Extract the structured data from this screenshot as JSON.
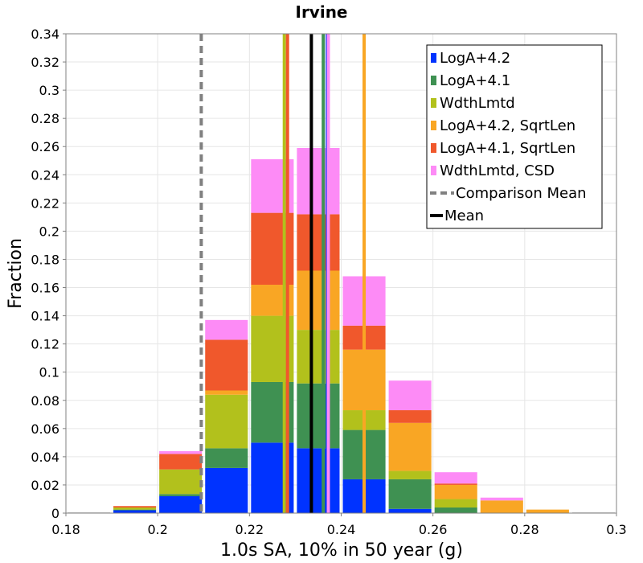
{
  "chart_data": {
    "type": "bar",
    "title": "Irvine",
    "xlabel": "1.0s SA, 10% in 50 year (g)",
    "ylabel": "Fraction",
    "xlim": [
      0.18,
      0.3
    ],
    "ylim": [
      0,
      0.34
    ],
    "x_ticks": [
      "0.18",
      "0.2",
      "0.22",
      "0.24",
      "0.26",
      "0.28",
      "0.3"
    ],
    "y_ticks": [
      "0",
      "0.02",
      "0.04",
      "0.06",
      "0.08",
      "0.1",
      "0.12",
      "0.14",
      "0.16",
      "0.18",
      "0.2",
      "0.22",
      "0.24",
      "0.26",
      "0.28",
      "0.3",
      "0.32",
      "0.34"
    ],
    "grid": true,
    "stacked": true,
    "bin_width": 0.01,
    "bin_centers": [
      0.185,
      0.195,
      0.205,
      0.215,
      0.225,
      0.235,
      0.245,
      0.255,
      0.265,
      0.275,
      0.285,
      0.295
    ],
    "series": [
      {
        "name": "LogA+4.2",
        "color": "#0033ff",
        "values": [
          0.0,
          0.002,
          0.012,
          0.032,
          0.05,
          0.046,
          0.024,
          0.003,
          0.0,
          0.0,
          0.0,
          0.0
        ]
      },
      {
        "name": "LogA+4.1",
        "color": "#3f9152",
        "values": [
          0.0,
          0.0005,
          0.0015,
          0.014,
          0.043,
          0.046,
          0.035,
          0.021,
          0.004,
          0.0,
          0.0,
          0.0
        ]
      },
      {
        "name": "WdthLmtd",
        "color": "#b2c11c",
        "values": [
          0.0,
          0.0015,
          0.0175,
          0.038,
          0.047,
          0.038,
          0.014,
          0.006,
          0.006,
          0.0,
          0.0,
          0.0
        ]
      },
      {
        "name": "LogA+4.2, SqrtLen",
        "color": "#f9a624",
        "values": [
          0.0,
          0.0,
          0.0,
          0.003,
          0.022,
          0.042,
          0.043,
          0.034,
          0.01,
          0.009,
          0.0025,
          0.0
        ]
      },
      {
        "name": "LogA+4.1, SqrtLen",
        "color": "#f0582c",
        "values": [
          0.0,
          0.001,
          0.011,
          0.036,
          0.051,
          0.04,
          0.017,
          0.009,
          0.001,
          0.0,
          0.0,
          0.0
        ]
      },
      {
        "name": "WdthLmtd, CSD",
        "color": "#fd8bf6",
        "values": [
          0.0,
          0.0,
          0.002,
          0.014,
          0.038,
          0.047,
          0.035,
          0.021,
          0.008,
          0.002,
          0.0,
          0.0
        ]
      }
    ],
    "series_means": [
      {
        "series": "LogA+4.2",
        "value": 0.237
      },
      {
        "series": "LogA+4.1",
        "value": 0.2361
      },
      {
        "series": "WdthLmtd",
        "value": 0.2276
      },
      {
        "series": "LogA+4.2, SqrtLen",
        "value": 0.245
      },
      {
        "series": "LogA+4.1, SqrtLen",
        "value": 0.2283
      },
      {
        "series": "WdthLmtd, CSD",
        "value": 0.2372
      }
    ],
    "comparison_mean": {
      "name": "Comparison Mean",
      "value": 0.2095,
      "color": "#808080",
      "style": "dashed"
    },
    "mean": {
      "name": "Mean",
      "value": 0.2335,
      "color": "#000000"
    },
    "legend_position": "top-right"
  }
}
